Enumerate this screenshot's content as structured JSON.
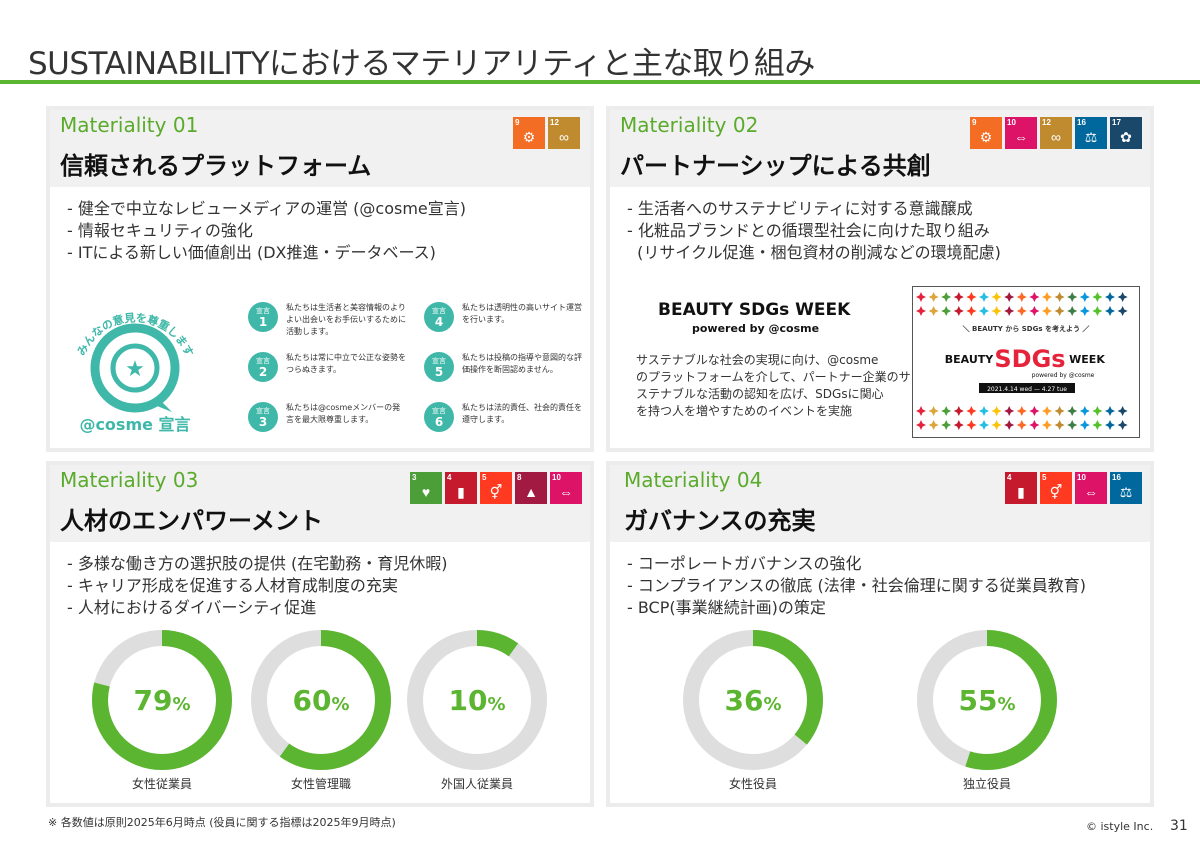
{
  "title": "SUSTAINABILITYにおけるマテリアリティと主な取り組み",
  "accent": "#5cb531",
  "materialities": [
    {
      "label": "Materiality 01",
      "title": "信頼されるプラットフォーム",
      "sdgs": [
        {
          "num": "9",
          "color": "#f36d25",
          "icon": "industry-icon"
        },
        {
          "num": "12",
          "color": "#bf8b2e",
          "icon": "infinity-icon"
        }
      ],
      "bullets": [
        "- 健全で中立なレビューメディアの運営 (@cosme宣言)",
        "- 情報セキュリティの強化",
        "- ITによる新しい価値創出 (DX推進・データベース)"
      ],
      "declaration": {
        "badge_top": "みんなの意見を尊重します",
        "badge_name": "@cosme 宣言",
        "items": [
          {
            "num": "1",
            "text": "私たちは生活者と美容情報のよりよい出会いをお手伝いするために活動します。"
          },
          {
            "num": "2",
            "text": "私たちは常に中立で公正な姿勢をつらぬきます。"
          },
          {
            "num": "3",
            "text": "私たちは@cosmeメンバーの発言を最大限尊重します。"
          },
          {
            "num": "4",
            "text": "私たちは透明性の高いサイト運営を行います。"
          },
          {
            "num": "5",
            "text": "私たちは投稿の指導や意図的な評価操作を断固認めません。"
          },
          {
            "num": "6",
            "text": "私たちは法的責任、社会的責任を遵守します。"
          }
        ],
        "circle_label": "宣言"
      }
    },
    {
      "label": "Materiality 02",
      "title": "パートナーシップによる共創",
      "sdgs": [
        {
          "num": "9",
          "color": "#f36d25",
          "icon": "industry-icon"
        },
        {
          "num": "10",
          "color": "#dd1367",
          "icon": "equality-icon"
        },
        {
          "num": "12",
          "color": "#bf8b2e",
          "icon": "infinity-icon"
        },
        {
          "num": "16",
          "color": "#00689d",
          "icon": "dove-icon"
        },
        {
          "num": "17",
          "color": "#19486a",
          "icon": "flower-icon"
        }
      ],
      "bullets": [
        "- 生活者へのサステナビリティに対する意識醸成",
        "- 化粧品ブランドとの循環型社会に向けた取り組み",
        "  (リサイクル促進・梱包資材の削減などの環境配慮)"
      ],
      "event": {
        "title": "BEAUTY SDGs WEEK",
        "powered": "powered by @cosme",
        "desc": [
          "サステナブルな社会の実現に向け、@cosme",
          "のプラットフォームを介して、パートナー企業のサ",
          "ステナブルな活動の認知を広げ、SDGsに関心",
          "を持つ人を増やすためのイベントを実施"
        ],
        "banner_tagline": "＼ BEAUTY から SDGs を考えよう ／",
        "banner_word1": "BEAUTY",
        "banner_word2": "SDGs",
        "banner_word3": "WEEK",
        "banner_powered": "powered by @cosme",
        "banner_dates": "2021.4.14 wed — 4.27 tue"
      }
    },
    {
      "label": "Materiality 03",
      "title": "人材のエンパワーメント",
      "sdgs": [
        {
          "num": "3",
          "color": "#4c9f38",
          "icon": "heartbeat-icon"
        },
        {
          "num": "4",
          "color": "#c5192d",
          "icon": "book-icon"
        },
        {
          "num": "5",
          "color": "#ff3a21",
          "icon": "gender-icon"
        },
        {
          "num": "8",
          "color": "#a21942",
          "icon": "growth-icon"
        },
        {
          "num": "10",
          "color": "#dd1367",
          "icon": "equality-icon"
        }
      ],
      "bullets": [
        "- 多様な働き方の選択肢の提供 (在宅勤務・育児休暇)",
        "- キャリア形成を促進する人材育成制度の充実",
        "- 人材におけるダイバーシティ促進"
      ],
      "donuts": [
        {
          "value": 79,
          "label": "79",
          "caption": "女性従業員"
        },
        {
          "value": 60,
          "label": "60",
          "caption": "女性管理職"
        },
        {
          "value": 10,
          "label": "10",
          "caption": "外国人従業員"
        }
      ]
    },
    {
      "label": "Materiality 04",
      "title": "ガバナンスの充実",
      "sdgs": [
        {
          "num": "4",
          "color": "#c5192d",
          "icon": "book-icon"
        },
        {
          "num": "5",
          "color": "#ff3a21",
          "icon": "gender-icon"
        },
        {
          "num": "10",
          "color": "#dd1367",
          "icon": "equality-icon"
        },
        {
          "num": "16",
          "color": "#00689d",
          "icon": "dove-icon"
        }
      ],
      "bullets": [
        "- コーポレートガバナンスの強化",
        "- コンプライアンスの徹底 (法律・社会倫理に関する従業員教育)",
        "- BCP(事業継続計画)の策定"
      ],
      "donuts": [
        {
          "value": 36,
          "label": "36",
          "caption": "女性役員"
        },
        {
          "value": 55,
          "label": "55",
          "caption": "独立役員"
        }
      ]
    }
  ],
  "percent_sign": "%",
  "donut_color": "#5cb531",
  "donut_track": "#dedede",
  "footnote": "※ 各数値は原則2025年6月時点 (役員に関する指標は2025年9月時点)",
  "copyright": "© istyle Inc.",
  "page_number": "31"
}
